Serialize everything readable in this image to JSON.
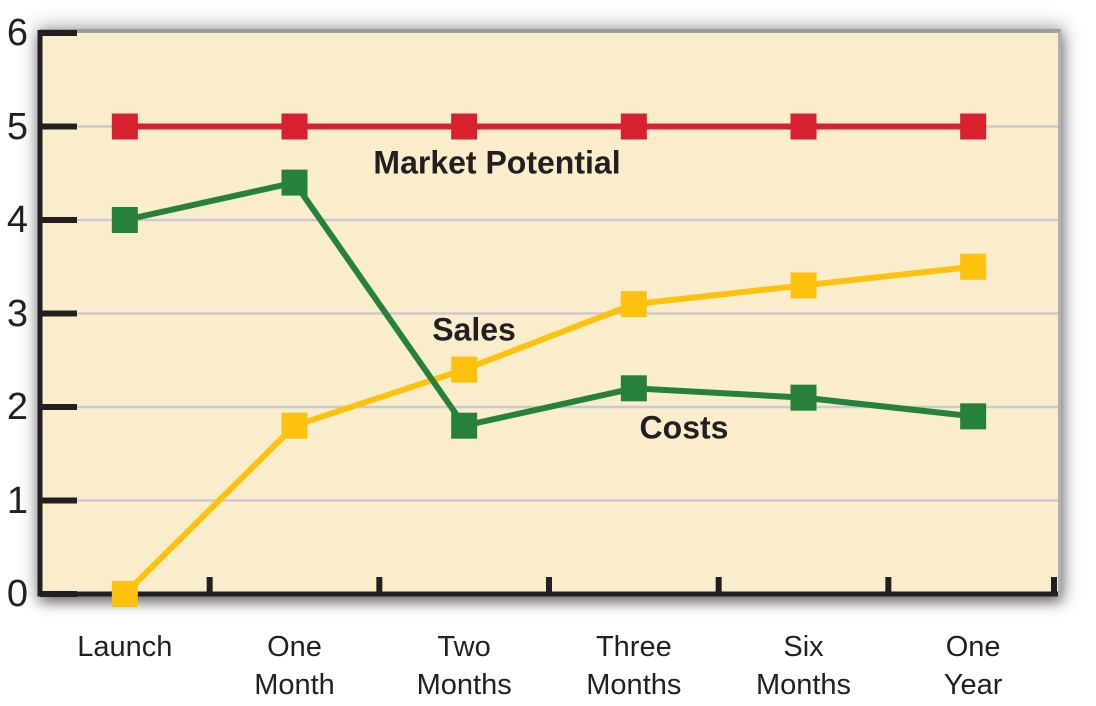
{
  "chart_data": {
    "type": "line",
    "title": "",
    "categories": [
      "Launch",
      "One Month",
      "Two Months",
      "Three Months",
      "Six Months",
      "One Year"
    ],
    "category_label_lines": [
      [
        "Launch"
      ],
      [
        "One",
        "Month"
      ],
      [
        "Two",
        "Months"
      ],
      [
        "Three",
        "Months"
      ],
      [
        "Six",
        "Months"
      ],
      [
        "One",
        "Year"
      ]
    ],
    "series": [
      {
        "name": "Market Potential",
        "color": "#d7212f",
        "values": [
          5,
          5,
          5,
          5,
          5,
          5
        ]
      },
      {
        "name": "Sales",
        "color": "#fec20e",
        "values": [
          0,
          1.8,
          2.4,
          3.1,
          3.3,
          3.5
        ]
      },
      {
        "name": "Costs",
        "color": "#26813a",
        "values": [
          4.0,
          4.4,
          1.8,
          2.2,
          2.1,
          1.9
        ]
      }
    ],
    "ylim": [
      0,
      6
    ],
    "y_ticks": [
      0,
      1,
      2,
      3,
      4,
      5,
      6
    ],
    "y_tick_labels": [
      "0",
      "1",
      "2",
      "3",
      "4",
      "5",
      "6"
    ],
    "xlabel": "",
    "ylabel": "",
    "grid": "horizontal gridlines at integer values",
    "legend": "none (inline series annotations)",
    "annotations": [
      "Market Potential",
      "Sales",
      "Costs"
    ],
    "marker": "square",
    "colors": {
      "plot_background": "#faedcc",
      "gridline": "#c9cbcd",
      "axis": "#231f20",
      "text": "#231f20",
      "page_background": "#ffffff"
    }
  }
}
